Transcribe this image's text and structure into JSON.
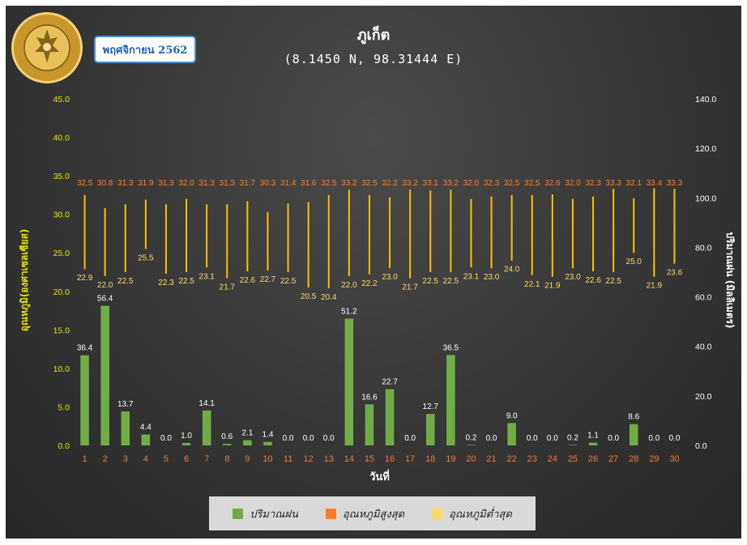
{
  "header": {
    "month": "พฤศจิกายน 2562"
  },
  "seal": {
    "icon": "meteorological-department-seal",
    "top_text": "กรมอุตุนิยมวิทยา",
    "bottom_text": "METEOROLOGICAL DEPARTMENT"
  },
  "colors": {
    "rain": "#70ad47",
    "max_temp": "#ff7f27",
    "min_temp": "#ffd966",
    "range_line": "#ffc000",
    "left_axis": "#e6e600",
    "right_axis": "#ffffff",
    "x_ticks": "#ed7d31"
  },
  "chart_data": {
    "type": "bar",
    "title": "ภูเก็ต",
    "subtitle": "(8.1450 N, 98.31444 E)",
    "xlabel": "วันที่",
    "ylabel_left": "อุณหภูมิ(องศาเซลเซียส)",
    "ylabel_right": "ปริมาณฝน (มิลลิเมตร)",
    "ylim_left": [
      0,
      45
    ],
    "ylim_right": [
      0,
      140
    ],
    "left_ticks": [
      "0.0",
      "5.0",
      "10.0",
      "15.0",
      "20.0",
      "25.0",
      "30.0",
      "35.0",
      "40.0",
      "45.0"
    ],
    "right_ticks": [
      "0.0",
      "20.0",
      "40.0",
      "60.0",
      "80.0",
      "100.0",
      "120.0",
      "140.0"
    ],
    "legend_position": "bottom",
    "grid": false,
    "categories": [
      "1",
      "2",
      "3",
      "4",
      "5",
      "6",
      "7",
      "8",
      "9",
      "10",
      "11",
      "12",
      "13",
      "14",
      "15",
      "16",
      "17",
      "18",
      "19",
      "20",
      "21",
      "22",
      "23",
      "24",
      "25",
      "26",
      "27",
      "28",
      "29",
      "30"
    ],
    "series": [
      {
        "name": "ปริมาณฝน",
        "axis": "right",
        "kind": "bar",
        "values": [
          36.4,
          56.4,
          13.7,
          4.4,
          0.0,
          1.0,
          14.1,
          0.6,
          2.1,
          1.4,
          0.0,
          0.0,
          0.0,
          51.2,
          16.6,
          22.7,
          0.0,
          12.7,
          36.5,
          0.2,
          0.0,
          9.0,
          0.0,
          0.0,
          0.2,
          1.1,
          0.0,
          8.6,
          0.0,
          0.0
        ],
        "labels": [
          "36.4",
          "56.4",
          "13.7",
          "4.4",
          "0.0",
          "1.0",
          "14.1",
          "0.6",
          "2.1",
          "1.4",
          "0.0",
          "0.0",
          "0.0",
          "51.2",
          "16.6",
          "22.7",
          "0.0",
          "12.7",
          "36.5",
          "0.2",
          "0.0",
          "9.0",
          "0.0",
          "0.0",
          "0.2",
          "1.1",
          "0.0",
          "8.6",
          "0.0",
          "0.0"
        ]
      },
      {
        "name": "อุณหภูมิสูงสุด",
        "axis": "left",
        "kind": "range-top",
        "values": [
          32.5,
          30.8,
          31.3,
          31.9,
          31.3,
          32.0,
          31.3,
          31.3,
          31.7,
          30.3,
          31.4,
          31.6,
          32.5,
          33.2,
          32.5,
          32.2,
          33.2,
          33.1,
          33.2,
          32.0,
          32.3,
          32.5,
          32.5,
          32.6,
          32.0,
          32.3,
          33.3,
          32.1,
          33.4,
          33.3
        ],
        "labels": [
          "32.5",
          "30.8",
          "31.3",
          "31.9",
          "31.3",
          "32.0",
          "31.3",
          "31.3",
          "31.7",
          "30.3",
          "31.4",
          "31.6",
          "32.5",
          "33.2",
          "32.5",
          "32.2",
          "33.2",
          "33.1",
          "33.2",
          "32.0",
          "32.3",
          "32.5",
          "32.5",
          "32.6",
          "32.0",
          "32.3",
          "33.3",
          "32.1",
          "33.4",
          "33.3"
        ]
      },
      {
        "name": "อุณหภูมิต่ำสุด",
        "axis": "left",
        "kind": "range-bottom",
        "values": [
          22.9,
          22.0,
          22.5,
          25.5,
          22.3,
          22.5,
          23.1,
          21.7,
          22.6,
          22.7,
          22.5,
          20.5,
          20.4,
          22.0,
          22.2,
          23.0,
          21.7,
          22.5,
          22.5,
          23.1,
          23.0,
          24.0,
          22.1,
          21.9,
          23.0,
          22.6,
          22.5,
          25.0,
          21.9,
          23.6
        ],
        "labels": [
          "22.9",
          "22.0",
          "22.5",
          "25.5",
          "22.3",
          "22.5",
          "23.1",
          "21.7",
          "22.6",
          "22.7",
          "22.5",
          "20.5",
          "20.4",
          "22.0",
          "22.2",
          "23.0",
          "21.7",
          "22.5",
          "22.5",
          "23.1",
          "23.0",
          "24.0",
          "22.1",
          "21.9",
          "23.0",
          "22.6",
          "22.5",
          "25.0",
          "21.9",
          "23.6"
        ]
      }
    ]
  }
}
